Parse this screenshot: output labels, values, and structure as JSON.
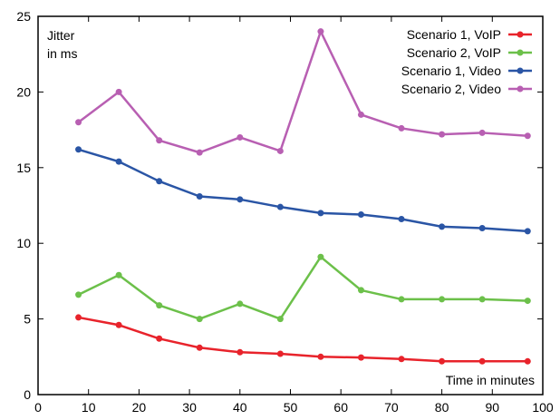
{
  "chart_data": {
    "type": "line",
    "title": "",
    "ylabel_line1": "Jitter",
    "ylabel_line2": "in ms",
    "xlabel": "Time in minutes",
    "xlim": [
      0,
      100
    ],
    "ylim": [
      0,
      25
    ],
    "xticks": [
      0,
      10,
      20,
      30,
      40,
      50,
      60,
      70,
      80,
      90,
      100
    ],
    "yticks": [
      0,
      5,
      10,
      15,
      20,
      25
    ],
    "grid": false,
    "legend_position": "top-right",
    "x": [
      8,
      16,
      24,
      32,
      40,
      48,
      56,
      64,
      72,
      80,
      88,
      97
    ],
    "series": [
      {
        "name": "Scenario 1, VoIP",
        "color": "#e8232b",
        "values": [
          5.1,
          4.6,
          3.7,
          3.1,
          2.8,
          2.7,
          2.5,
          2.45,
          2.35,
          2.2,
          2.2,
          2.2
        ]
      },
      {
        "name": "Scenario 2, VoIP",
        "color": "#6cc04a",
        "values": [
          6.6,
          7.9,
          5.9,
          5.0,
          6.0,
          5.0,
          9.1,
          6.9,
          6.3,
          6.3,
          6.3,
          6.2
        ]
      },
      {
        "name": "Scenario 1, Video",
        "color": "#2a55a5",
        "values": [
          16.2,
          15.4,
          14.1,
          13.1,
          12.9,
          12.4,
          12.0,
          11.9,
          11.6,
          11.1,
          11.0,
          10.8
        ]
      },
      {
        "name": "Scenario 2, Video",
        "color": "#b85fb2",
        "values": [
          18.0,
          20.0,
          16.8,
          16.0,
          17.0,
          16.1,
          24.0,
          18.5,
          17.6,
          17.2,
          17.3,
          17.1
        ]
      }
    ]
  }
}
